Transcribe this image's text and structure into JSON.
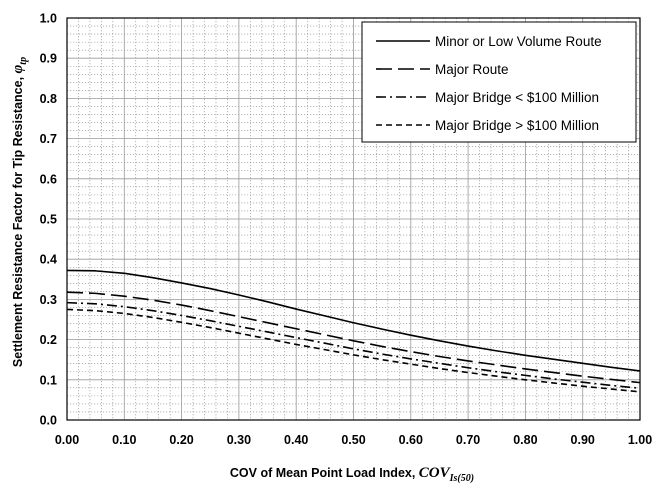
{
  "chart_data": {
    "type": "line",
    "xlabel": "COV of Mean Point Load Index, ",
    "xlabel_symbol": "COV",
    "xlabel_subscript": "Is(50)",
    "ylabel": "Settlement Resistance Factor for Tip Resistance, ",
    "ylabel_symbol": "φ",
    "ylabel_subscript": "tp",
    "xlim": [
      0,
      1
    ],
    "ylim": [
      0,
      1
    ],
    "xticks": [
      "0.00",
      "0.10",
      "0.20",
      "0.30",
      "0.40",
      "0.50",
      "0.60",
      "0.70",
      "0.80",
      "0.90",
      "1.00"
    ],
    "yticks": [
      "0.0",
      "0.1",
      "0.2",
      "0.3",
      "0.4",
      "0.5",
      "0.6",
      "0.7",
      "0.8",
      "0.9",
      "1.0"
    ],
    "grid": true,
    "legend_position": "top-right",
    "x": [
      0.0,
      0.05,
      0.1,
      0.15,
      0.2,
      0.25,
      0.3,
      0.35,
      0.4,
      0.45,
      0.5,
      0.55,
      0.6,
      0.65,
      0.7,
      0.75,
      0.8,
      0.85,
      0.9,
      0.95,
      1.0
    ],
    "series": [
      {
        "name": "Minor or Low Volume Route",
        "dash": "solid",
        "values": [
          0.372,
          0.371,
          0.365,
          0.354,
          0.341,
          0.327,
          0.311,
          0.294,
          0.276,
          0.259,
          0.242,
          0.226,
          0.211,
          0.197,
          0.184,
          0.172,
          0.161,
          0.151,
          0.141,
          0.131,
          0.122
        ]
      },
      {
        "name": "Major Route",
        "dash": "long-dash",
        "values": [
          0.318,
          0.315,
          0.308,
          0.298,
          0.286,
          0.272,
          0.257,
          0.242,
          0.227,
          0.212,
          0.197,
          0.183,
          0.17,
          0.158,
          0.147,
          0.137,
          0.127,
          0.118,
          0.109,
          0.101,
          0.093
        ]
      },
      {
        "name": "Major Bridge < $100 Million",
        "dash": "dash-dot",
        "values": [
          0.292,
          0.289,
          0.282,
          0.272,
          0.26,
          0.247,
          0.233,
          0.219,
          0.205,
          0.191,
          0.177,
          0.164,
          0.152,
          0.141,
          0.13,
          0.12,
          0.111,
          0.102,
          0.094,
          0.086,
          0.079
        ]
      },
      {
        "name": "Major Bridge > $100 Million",
        "dash": "short-dash",
        "values": [
          0.275,
          0.272,
          0.265,
          0.255,
          0.243,
          0.23,
          0.216,
          0.202,
          0.188,
          0.175,
          0.162,
          0.15,
          0.139,
          0.128,
          0.118,
          0.109,
          0.1,
          0.092,
          0.084,
          0.077,
          0.07
        ]
      }
    ]
  }
}
